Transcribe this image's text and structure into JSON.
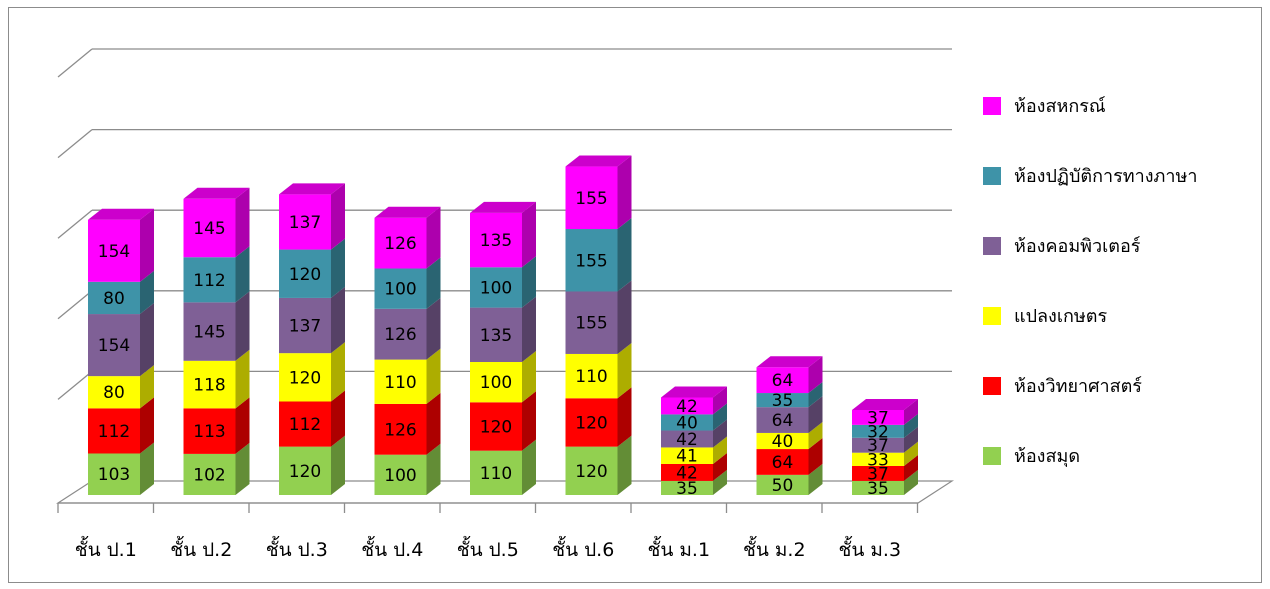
{
  "chart_data": {
    "type": "bar",
    "stacked": true,
    "three_d": true,
    "categories": [
      "ชั้น ป.1",
      "ชั้น ป.2",
      "ชั้น ป.3",
      "ชั้น ป.4",
      "ชั้น ป.5",
      "ชั้น ป.6",
      "ชั้น ม.1",
      "ชั้น ม.2",
      "ชั้น ม.3"
    ],
    "series": [
      {
        "name": "ห้องสมุด",
        "color": "#92d050",
        "values": [
          103,
          102,
          120,
          100,
          110,
          120,
          35,
          50,
          35
        ]
      },
      {
        "name": "ห้องวิทยาศาสตร์",
        "color": "#ff0000",
        "values": [
          112,
          113,
          112,
          126,
          120,
          120,
          42,
          64,
          37
        ]
      },
      {
        "name": "แปลงเกษตร",
        "color": "#ffff00",
        "values": [
          80,
          118,
          120,
          110,
          100,
          110,
          41,
          40,
          33
        ]
      },
      {
        "name": "ห้องคอมพิวเตอร์",
        "color": "#7f6096",
        "values": [
          154,
          145,
          137,
          126,
          135,
          155,
          42,
          64,
          37
        ]
      },
      {
        "name": "ห้องปฏิบัติการทางภาษา",
        "color": "#3e93a8",
        "values": [
          80,
          112,
          120,
          100,
          100,
          155,
          40,
          35,
          32
        ]
      },
      {
        "name": "ห้องสหกรณ์",
        "color": "#ff00ff",
        "values": [
          154,
          145,
          137,
          126,
          135,
          155,
          42,
          64,
          37
        ]
      }
    ],
    "legend_position": "right",
    "legend_order": "reverse",
    "gridlines": true,
    "ylim": [
      0,
      1000
    ],
    "title": "",
    "xlabel": "",
    "ylabel": ""
  }
}
